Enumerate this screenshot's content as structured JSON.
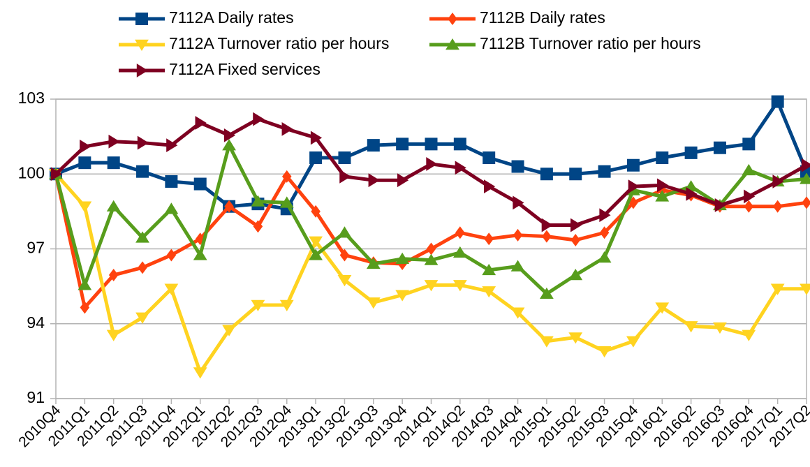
{
  "chart_data": {
    "type": "line",
    "categories": [
      "2010Q4",
      "2011Q1",
      "2011Q2",
      "2011Q3",
      "2011Q4",
      "2012Q1",
      "2012Q2",
      "2012Q3",
      "2012Q4",
      "2013Q1",
      "2013Q2",
      "2013Q3",
      "2013Q4",
      "2014Q1",
      "2014Q2",
      "2014Q3",
      "2014Q4",
      "2015Q1",
      "2015Q2",
      "2015Q3",
      "2015Q4",
      "2016Q1",
      "2016Q2",
      "2016Q3",
      "2016Q4",
      "2017Q1",
      "2017Q2"
    ],
    "ylim": [
      91,
      103
    ],
    "yticks": [
      91,
      94,
      97,
      100,
      103
    ],
    "grid": true,
    "series": [
      {
        "name": "7112A Daily rates",
        "color": "#004586",
        "marker": "square",
        "values": [
          100,
          100.45,
          100.45,
          100.1,
          99.7,
          99.6,
          98.7,
          98.8,
          98.6,
          100.65,
          100.65,
          101.15,
          101.2,
          101.2,
          101.2,
          100.65,
          100.3,
          100,
          100,
          100.1,
          100.35,
          100.65,
          100.85,
          101.05,
          101.2,
          102.9,
          100.1
        ]
      },
      {
        "name": "7112B Daily rates",
        "color": "#ff420e",
        "marker": "diamond",
        "values": [
          100,
          94.65,
          95.95,
          96.25,
          96.75,
          97.4,
          98.7,
          97.9,
          99.9,
          98.5,
          96.75,
          96.45,
          96.4,
          97,
          97.65,
          97.4,
          97.55,
          97.5,
          97.35,
          97.65,
          98.85,
          99.35,
          99.15,
          98.7,
          98.7,
          98.7,
          98.85
        ]
      },
      {
        "name": "7112A Turnover ratio per hours",
        "color": "#ffd320",
        "marker": "triangle-down",
        "values": [
          100,
          98.7,
          93.55,
          94.25,
          95.4,
          92.05,
          93.75,
          94.75,
          94.75,
          97.3,
          95.75,
          94.85,
          95.15,
          95.55,
          95.55,
          95.3,
          94.45,
          93.3,
          93.45,
          92.9,
          93.3,
          94.65,
          93.9,
          93.85,
          93.55,
          95.4,
          95.4
        ]
      },
      {
        "name": "7112B Turnover ratio per hours",
        "color": "#579d1c",
        "marker": "triangle-up",
        "values": [
          100,
          95.55,
          98.7,
          97.45,
          98.6,
          96.75,
          101.15,
          98.9,
          98.85,
          96.75,
          97.65,
          96.4,
          96.6,
          96.55,
          96.85,
          96.15,
          96.3,
          95.2,
          95.95,
          96.65,
          99.35,
          99.1,
          99.5,
          98.75,
          100.15,
          99.7,
          99.8
        ]
      },
      {
        "name": "7112A Fixed services",
        "color": "#7e0021",
        "marker": "triangle-right",
        "values": [
          100,
          101.1,
          101.3,
          101.25,
          101.15,
          102.05,
          101.55,
          102.2,
          101.8,
          101.45,
          99.9,
          99.75,
          99.75,
          100.4,
          100.25,
          99.5,
          98.85,
          97.95,
          97.95,
          98.35,
          99.5,
          99.55,
          99.2,
          98.75,
          99.1,
          99.7,
          100.35
        ]
      }
    ]
  }
}
